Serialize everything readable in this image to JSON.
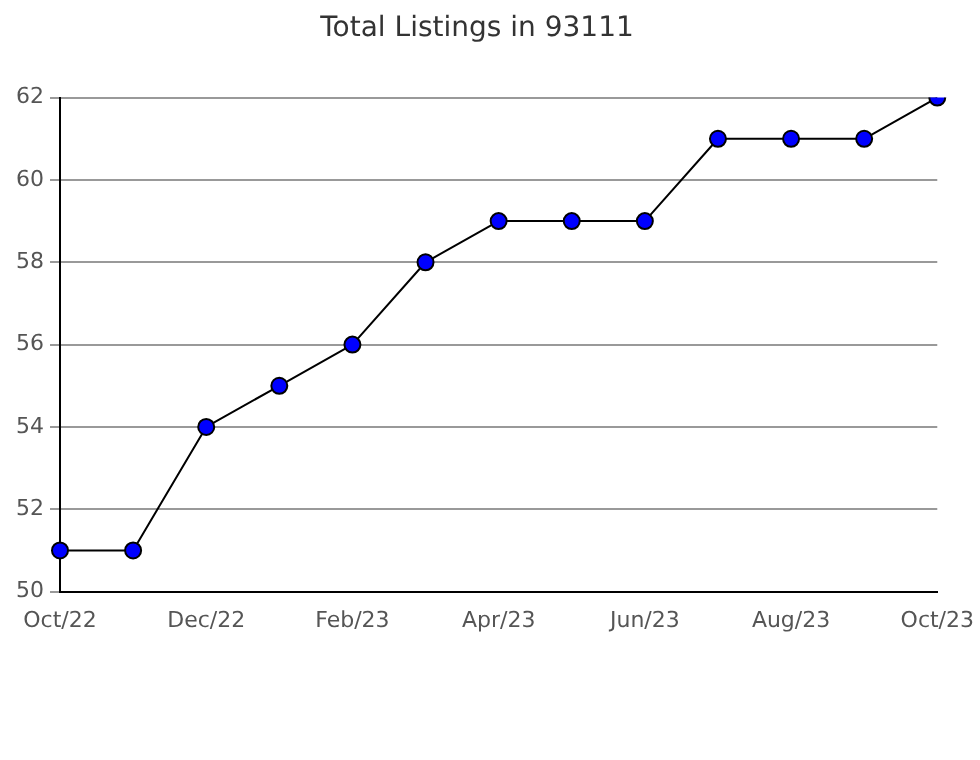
{
  "chart_data": {
    "type": "line",
    "title": "Total Listings in 93111",
    "categories": [
      "Oct/22",
      null,
      "Dec/22",
      null,
      "Feb/23",
      null,
      "Apr/23",
      null,
      "Jun/23",
      null,
      "Aug/23",
      null,
      "Oct/23"
    ],
    "series": [
      {
        "color": "#0000ff",
        "values": [
          51,
          51,
          54,
          55,
          56,
          58,
          59,
          59,
          59,
          61,
          61,
          61,
          62
        ]
      }
    ],
    "ylim": [
      50,
      62
    ],
    "yticks": [
      50,
      52,
      54,
      56,
      58,
      60,
      62
    ],
    "grid": "y",
    "legend": false,
    "marker": "circle",
    "line_style": "solid"
  }
}
